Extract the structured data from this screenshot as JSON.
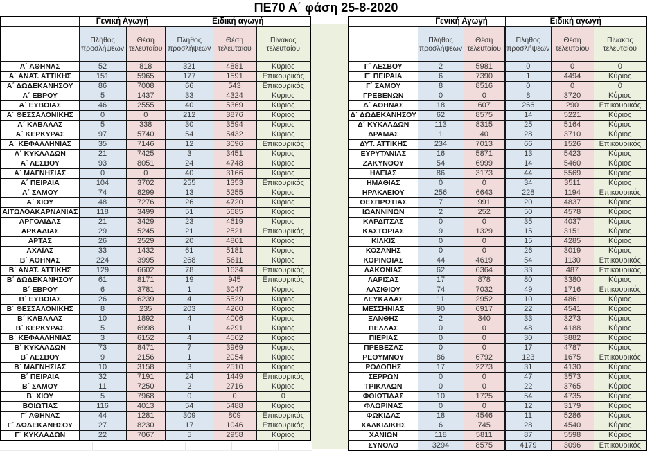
{
  "title": "ΠΕ70 Α΄ φάση 25-8-2020",
  "headers": {
    "general": "Γενική Αγωγή",
    "special": "Ειδική αγωγή",
    "hires": "Πλήθος προσλήψεων",
    "last_position": "Θέση τελευταίου",
    "last_table": "Πίνακας τελευταίου"
  },
  "colors": {
    "hires_bg": "#dce6f1",
    "last_position_bg": "#f2dcdb",
    "last_table_bg": "#ebf1de",
    "border": "#000000"
  },
  "left_table": {
    "rows": [
      [
        "Α΄ ΑΘΗΝΑΣ",
        "52",
        "818",
        "321",
        "4881",
        "Κύριος"
      ],
      [
        "Α΄ ΑΝΑΤ. ΑΤΤΙΚΗΣ",
        "151",
        "5965",
        "177",
        "1591",
        "Επικουρικός"
      ],
      [
        "Α΄ ΔΩΔΕΚΑΝΗΣΟΥ",
        "86",
        "7008",
        "66",
        "543",
        "Επικουρικός"
      ],
      [
        "Α΄ ΕΒΡΟΥ",
        "5",
        "1437",
        "33",
        "4324",
        "Κύριος"
      ],
      [
        "Α΄ ΕΥΒΟΙΑΣ",
        "46",
        "2555",
        "40",
        "5369",
        "Κύριος"
      ],
      [
        "Α΄ ΘΕΣΣΑΛΟΝΙΚΗΣ",
        "0",
        "0",
        "212",
        "3876",
        "Κύριος"
      ],
      [
        "Α΄ ΚΑΒΑΛΑΣ",
        "5",
        "338",
        "30",
        "3594",
        "Κύριος"
      ],
      [
        "Α΄ ΚΕΡΚΥΡΑΣ",
        "97",
        "5740",
        "54",
        "5432",
        "Κύριος"
      ],
      [
        "Α΄ ΚΕΦΑΛΛΗΝΙΑΣ",
        "35",
        "7146",
        "12",
        "3096",
        "Επικουρικός"
      ],
      [
        "Α΄ ΚΥΚΛΑΔΩΝ",
        "21",
        "7425",
        "3",
        "3451",
        "Κύριος"
      ],
      [
        "Α΄ ΛΕΣΒΟΥ",
        "93",
        "8051",
        "24",
        "4748",
        "Κύριος"
      ],
      [
        "Α΄ ΜΑΓΝΗΣΙΑΣ",
        "0",
        "0",
        "40",
        "3166",
        "Κύριος"
      ],
      [
        "Α΄ ΠΕΙΡΑΙΑ",
        "104",
        "3702",
        "255",
        "1353",
        "Επικουρικός"
      ],
      [
        "Α΄ ΣΑΜΟΥ",
        "74",
        "8299",
        "13",
        "5255",
        "Κύριος"
      ],
      [
        "Α΄ ΧΙΟΥ",
        "48",
        "7276",
        "26",
        "4720",
        "Κύριος"
      ],
      [
        "ΑΙΤΩΛΟΑΚΑΡΝΑΝΙΑΣ",
        "118",
        "3499",
        "51",
        "5685",
        "Κύριος"
      ],
      [
        "ΑΡΓΟΛΙΔΑΣ",
        "21",
        "3429",
        "23",
        "4619",
        "Κύριος"
      ],
      [
        "ΑΡΚΑΔΙΑΣ",
        "29",
        "5245",
        "21",
        "2521",
        "Επικουρικός"
      ],
      [
        "ΑΡΤΑΣ",
        "26",
        "2529",
        "20",
        "4801",
        "Κύριος"
      ],
      [
        "ΑΧΑΪΑΣ",
        "33",
        "1432",
        "61",
        "5181",
        "Κύριος"
      ],
      [
        "Β΄ ΑΘΗΝΑΣ",
        "224",
        "3995",
        "268",
        "5611",
        "Κύριος"
      ],
      [
        "Β΄ ΑΝΑΤ. ΑΤΤΙΚΗΣ",
        "129",
        "6602",
        "78",
        "1634",
        "Επικουρικός"
      ],
      [
        "Β΄ ΔΩΔΕΚΑΝΗΣΟΥ",
        "61",
        "8171",
        "19",
        "945",
        "Επικουρικός"
      ],
      [
        "Β΄ ΕΒΡΟΥ",
        "6",
        "3781",
        "1",
        "3047",
        "Κύριος"
      ],
      [
        "Β΄ ΕΥΒΟΙΑΣ",
        "26",
        "6239",
        "4",
        "5529",
        "Κύριος"
      ],
      [
        "Β΄ ΘΕΣΣΑΛΟΝΙΚΗΣ",
        "8",
        "235",
        "203",
        "4260",
        "Κύριος"
      ],
      [
        "Β΄ ΚΑΒΑΛΑΣ",
        "10",
        "1892",
        "4",
        "4006",
        "Κύριος"
      ],
      [
        "Β΄ ΚΕΡΚΥΡΑΣ",
        "5",
        "6998",
        "1",
        "4291",
        "Κύριος"
      ],
      [
        "Β΄ ΚΕΦΑΛΛΗΝΙΑΣ",
        "3",
        "6152",
        "4",
        "4502",
        "Κύριος"
      ],
      [
        "Β΄ ΚΥΚΛΑΔΩΝ",
        "73",
        "8471",
        "7",
        "3969",
        "Κύριος"
      ],
      [
        "Β΄ ΛΕΣΒΟΥ",
        "9",
        "2156",
        "1",
        "2054",
        "Κύριος"
      ],
      [
        "Β΄ ΜΑΓΝΗΣΙΑΣ",
        "10",
        "3158",
        "3",
        "2510",
        "Κύριος"
      ],
      [
        "Β΄ ΠΕΙΡΑΙΑ",
        "32",
        "7191",
        "24",
        "1449",
        "Επικουρικός"
      ],
      [
        "Β΄ ΣΑΜΟΥ",
        "11",
        "7250",
        "2",
        "2716",
        "Κύριος"
      ],
      [
        "Β΄ ΧΙΟΥ",
        "5",
        "7968",
        "0",
        "0",
        "0"
      ],
      [
        "ΒΟΙΩΤΙΑΣ",
        "116",
        "4013",
        "54",
        "5488",
        "Κύριος"
      ],
      [
        "Γ΄ ΑΘΗΝΑΣ",
        "44",
        "1281",
        "309",
        "809",
        "Επικουρικός"
      ],
      [
        "Γ΄ ΔΩΔΕΚΑΝΗΣΟΥ",
        "27",
        "8230",
        "17",
        "1046",
        "Επικουρικός"
      ],
      [
        "Γ΄ ΚΥΚΛΑΔΩΝ",
        "22",
        "7067",
        "5",
        "2958",
        "Κύριος"
      ]
    ]
  },
  "right_table": {
    "rows": [
      [
        "Γ΄ ΛΕΣΒΟΥ",
        "2",
        "5981",
        "0",
        "0",
        "0"
      ],
      [
        "Γ΄ ΠΕΙΡΑΙΑ",
        "6",
        "7390",
        "1",
        "4494",
        "Κύριος"
      ],
      [
        "Γ΄ ΣΑΜΟΥ",
        "8",
        "8516",
        "0",
        "0",
        "0"
      ],
      [
        "ΓΡΕΒΕΝΩΝ",
        "0",
        "0",
        "8",
        "3720",
        "Κύριος"
      ],
      [
        "Δ΄ ΑΘΗΝΑΣ",
        "18",
        "607",
        "266",
        "290",
        "Επικουρικός"
      ],
      [
        "Δ΄ ΔΩΔΕΚΑΝΗΣΟΥ",
        "62",
        "8575",
        "14",
        "5221",
        "Κύριος"
      ],
      [
        "Δ΄ ΚΥΚΛΑΔΩΝ",
        "113",
        "8315",
        "25",
        "5164",
        "Κύριος"
      ],
      [
        "ΔΡΑΜΑΣ",
        "1",
        "40",
        "28",
        "3710",
        "Κύριος"
      ],
      [
        "ΔΥΤ. ΑΤΤΙΚΗΣ",
        "234",
        "7013",
        "66",
        "1526",
        "Επικουρικός"
      ],
      [
        "ΕΥΡΥΤΑΝΙΑΣ",
        "16",
        "5871",
        "13",
        "5423",
        "Κύριος"
      ],
      [
        "ΖΑΚΥΝΘΟΥ",
        "54",
        "6999",
        "14",
        "5460",
        "Κύριος"
      ],
      [
        "ΗΛΕΙΑΣ",
        "86",
        "3173",
        "44",
        "5569",
        "Κύριος"
      ],
      [
        "ΗΜΑΘΙΑΣ",
        "0",
        "0",
        "34",
        "3511",
        "Κύριος"
      ],
      [
        "ΗΡΑΚΛΕΙΟΥ",
        "256",
        "6643",
        "228",
        "1194",
        "Επικουρικός"
      ],
      [
        "ΘΕΣΠΡΩΤΙΑΣ",
        "7",
        "991",
        "20",
        "4837",
        "Κύριος"
      ],
      [
        "ΙΩΑΝΝΙΝΩΝ",
        "2",
        "252",
        "50",
        "4578",
        "Κύριος"
      ],
      [
        "ΚΑΡΔΙΤΣΑΣ",
        "0",
        "0",
        "35",
        "4037",
        "Κύριος"
      ],
      [
        "ΚΑΣΤΟΡΙΑΣ",
        "9",
        "1329",
        "15",
        "3151",
        "Κύριος"
      ],
      [
        "ΚΙΛΚΙΣ",
        "0",
        "0",
        "15",
        "4285",
        "Κύριος"
      ],
      [
        "ΚΟΖΑΝΗΣ",
        "0",
        "0",
        "26",
        "3019",
        "Κύριος"
      ],
      [
        "ΚΟΡΙΝΘΙΑΣ",
        "44",
        "4619",
        "54",
        "1130",
        "Επικουρικός"
      ],
      [
        "ΛΑΚΩΝΙΑΣ",
        "62",
        "6364",
        "33",
        "487",
        "Επικουρικός"
      ],
      [
        "ΛΑΡΙΣΑΣ",
        "17",
        "878",
        "80",
        "3380",
        "Κύριος"
      ],
      [
        "ΛΑΣΙΘΙΟΥ",
        "74",
        "7032",
        "49",
        "1716",
        "Επικουρικός"
      ],
      [
        "ΛΕΥΚΑΔΑΣ",
        "11",
        "2952",
        "10",
        "4861",
        "Κύριος"
      ],
      [
        "ΜΕΣΣΗΝΙΑΣ",
        "90",
        "6917",
        "22",
        "4541",
        "Κύριος"
      ],
      [
        "ΞΑΝΘΗΣ",
        "2",
        "340",
        "33",
        "3273",
        "Κύριος"
      ],
      [
        "ΠΕΛΛΑΣ",
        "0",
        "0",
        "48",
        "4188",
        "Κύριος"
      ],
      [
        "ΠΙΕΡΙΑΣ",
        "0",
        "0",
        "30",
        "3882",
        "Κύριος"
      ],
      [
        "ΠΡΕΒΕΖΑΣ",
        "0",
        "0",
        "17",
        "4787",
        "Κύριος"
      ],
      [
        "ΡΕΘΥΜΝΟΥ",
        "86",
        "6792",
        "123",
        "1675",
        "Επικουρικός"
      ],
      [
        "ΡΟΔΟΠΗΣ",
        "17",
        "2273",
        "31",
        "4130",
        "Κύριος"
      ],
      [
        "ΣΕΡΡΩΝ",
        "0",
        "0",
        "47",
        "3573",
        "Κύριος"
      ],
      [
        "ΤΡΙΚΑΛΩΝ",
        "0",
        "0",
        "22",
        "3765",
        "Κύριος"
      ],
      [
        "ΦΘΙΩΤΙΔΑΣ",
        "10",
        "1725",
        "54",
        "4735",
        "Κύριος"
      ],
      [
        "ΦΛΩΡΙΝΑΣ",
        "0",
        "0",
        "12",
        "3179",
        "Κύριος"
      ],
      [
        "ΦΩΚΙΔΑΣ",
        "18",
        "4546",
        "11",
        "5286",
        "Κύριος"
      ],
      [
        "ΧΑΛΚΙΔΙΚΗΣ",
        "6",
        "745",
        "28",
        "4540",
        "Κύριος"
      ],
      [
        "ΧΑΝΙΩΝ",
        "118",
        "5811",
        "87",
        "5598",
        "Κύριος"
      ],
      [
        "ΣΥΝΟΛΟ",
        "3294",
        "8575",
        "4179",
        "3096",
        "Επικουρικός"
      ]
    ]
  }
}
